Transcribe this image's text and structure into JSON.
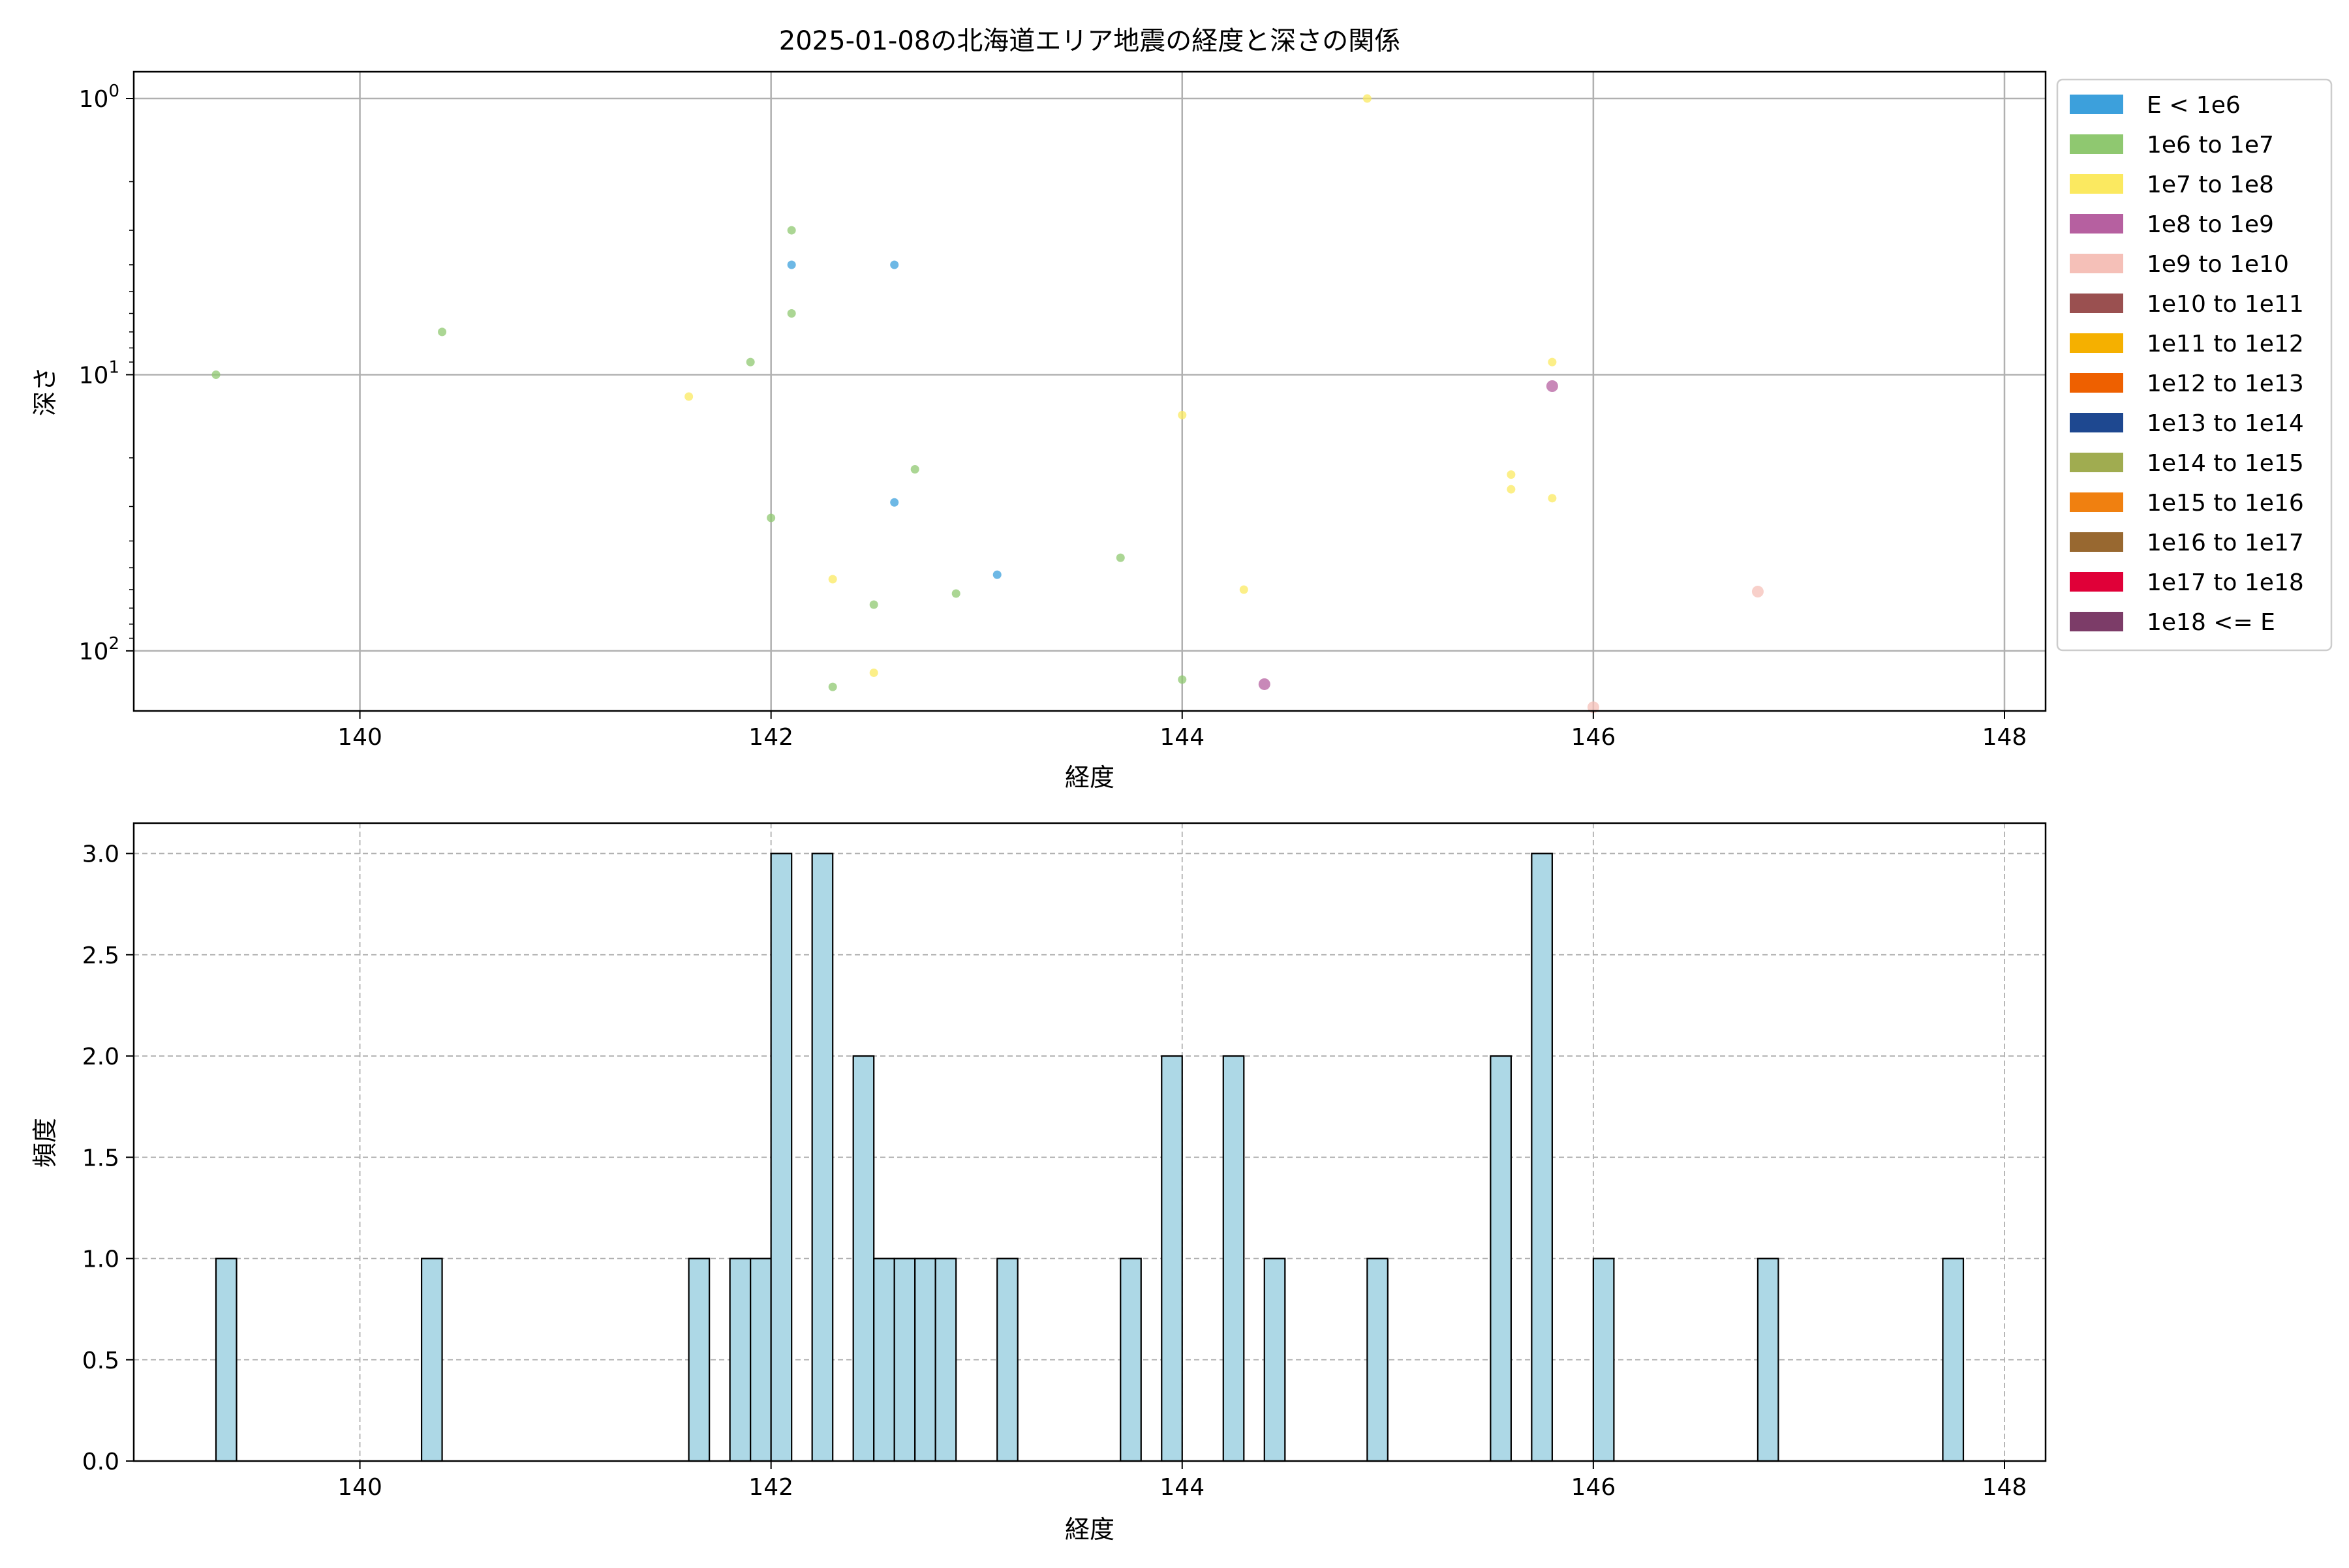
{
  "chart_data": [
    {
      "type": "scatter",
      "title": "2025-01-08の北海道エリア地震の経度と深さの関係",
      "xlabel": "経度",
      "ylabel": "深さ",
      "xlim": [
        138.9,
        148.2
      ],
      "ylim": [
        165,
        0.8
      ],
      "yscale": "log",
      "y_inverted": true,
      "grid": true,
      "x_ticks": [
        "140",
        "142",
        "144",
        "146",
        "148"
      ],
      "x_tick_values": [
        140,
        142,
        144,
        146,
        148
      ],
      "y_ticks": [
        {
          "base": "10",
          "exp": "0",
          "value": 1
        },
        {
          "base": "10",
          "exp": "1",
          "value": 10
        },
        {
          "base": "10",
          "exp": "2",
          "value": 100
        }
      ],
      "legend_position": "outside-right-top",
      "legend": [
        {
          "label": "E < 1e6",
          "color": "#3ca0dc"
        },
        {
          "label": "1e6 to 1e7",
          "color": "#8fc870"
        },
        {
          "label": "1e7 to 1e8",
          "color": "#fbe960"
        },
        {
          "label": "1e8 to 1e9",
          "color": "#b660a0"
        },
        {
          "label": "1e9 to 1e10",
          "color": "#f5c0b8"
        },
        {
          "label": "1e10 to 1e11",
          "color": "#9a5050"
        },
        {
          "label": "1e11 to 1e12",
          "color": "#f5b000"
        },
        {
          "label": "1e12 to 1e13",
          "color": "#ee6000"
        },
        {
          "label": "1e13 to 1e14",
          "color": "#1e4890"
        },
        {
          "label": "1e14 to 1e15",
          "color": "#a0ac50"
        },
        {
          "label": "1e15 to 1e16",
          "color": "#f08010"
        },
        {
          "label": "1e16 to 1e17",
          "color": "#986830"
        },
        {
          "label": "1e17 to 1e18",
          "color": "#e00038"
        },
        {
          "label": "1e18 <= E",
          "color": "#7c3c68"
        }
      ],
      "points": [
        {
          "x": 139.3,
          "y": 10,
          "c": 1
        },
        {
          "x": 140.4,
          "y": 7,
          "c": 1
        },
        {
          "x": 141.6,
          "y": 12,
          "c": 2
        },
        {
          "x": 141.9,
          "y": 9,
          "c": 1
        },
        {
          "x": 142.0,
          "y": 33,
          "c": 1
        },
        {
          "x": 142.1,
          "y": 3,
          "c": 1
        },
        {
          "x": 142.1,
          "y": 4,
          "c": 0
        },
        {
          "x": 142.1,
          "y": 6,
          "c": 1
        },
        {
          "x": 142.3,
          "y": 55,
          "c": 2
        },
        {
          "x": 142.3,
          "y": 135,
          "c": 1
        },
        {
          "x": 142.5,
          "y": 68,
          "c": 1
        },
        {
          "x": 142.5,
          "y": 120,
          "c": 2
        },
        {
          "x": 142.6,
          "y": 4,
          "c": 0
        },
        {
          "x": 142.6,
          "y": 29,
          "c": 0
        },
        {
          "x": 142.7,
          "y": 22,
          "c": 1
        },
        {
          "x": 142.9,
          "y": 62,
          "c": 1
        },
        {
          "x": 143.1,
          "y": 53,
          "c": 0
        },
        {
          "x": 143.7,
          "y": 46,
          "c": 1
        },
        {
          "x": 144.0,
          "y": 14,
          "c": 2
        },
        {
          "x": 144.0,
          "y": 127,
          "c": 1
        },
        {
          "x": 144.3,
          "y": 60,
          "c": 2
        },
        {
          "x": 144.4,
          "y": 132,
          "c": 3
        },
        {
          "x": 144.9,
          "y": 1,
          "c": 2
        },
        {
          "x": 145.6,
          "y": 23,
          "c": 2
        },
        {
          "x": 145.6,
          "y": 26,
          "c": 2
        },
        {
          "x": 145.8,
          "y": 11,
          "c": 3
        },
        {
          "x": 145.8,
          "y": 9,
          "c": 2
        },
        {
          "x": 145.8,
          "y": 28,
          "c": 2
        },
        {
          "x": 146.0,
          "y": 160,
          "c": 4
        },
        {
          "x": 146.8,
          "y": 61,
          "c": 4
        }
      ]
    },
    {
      "type": "bar",
      "subtype": "histogram",
      "xlabel": "経度",
      "ylabel": "頻度",
      "xlim": [
        138.9,
        148.2
      ],
      "ylim": [
        0,
        3.15
      ],
      "grid": true,
      "bar_color": "#add8e6",
      "bin_width": 0.1,
      "x_ticks": [
        "140",
        "142",
        "144",
        "146",
        "148"
      ],
      "x_tick_values": [
        140,
        142,
        144,
        146,
        148
      ],
      "y_ticks": [
        "0.0",
        "0.5",
        "1.0",
        "1.5",
        "2.0",
        "2.5",
        "3.0"
      ],
      "y_tick_values": [
        0,
        0.5,
        1,
        1.5,
        2,
        2.5,
        3
      ],
      "bins": [
        {
          "x": 139.3,
          "count": 1
        },
        {
          "x": 140.3,
          "count": 1
        },
        {
          "x": 141.6,
          "count": 1
        },
        {
          "x": 141.8,
          "count": 1
        },
        {
          "x": 141.9,
          "count": 1
        },
        {
          "x": 142.0,
          "count": 3
        },
        {
          "x": 142.2,
          "count": 3
        },
        {
          "x": 142.4,
          "count": 2
        },
        {
          "x": 142.5,
          "count": 1
        },
        {
          "x": 142.6,
          "count": 1
        },
        {
          "x": 142.7,
          "count": 1
        },
        {
          "x": 142.8,
          "count": 1
        },
        {
          "x": 143.1,
          "count": 1
        },
        {
          "x": 143.7,
          "count": 1
        },
        {
          "x": 143.9,
          "count": 2
        },
        {
          "x": 144.2,
          "count": 2
        },
        {
          "x": 144.4,
          "count": 1
        },
        {
          "x": 144.9,
          "count": 1
        },
        {
          "x": 145.5,
          "count": 2
        },
        {
          "x": 145.7,
          "count": 3
        },
        {
          "x": 146.0,
          "count": 1
        },
        {
          "x": 146.8,
          "count": 1
        },
        {
          "x": 147.7,
          "count": 1
        }
      ]
    }
  ]
}
